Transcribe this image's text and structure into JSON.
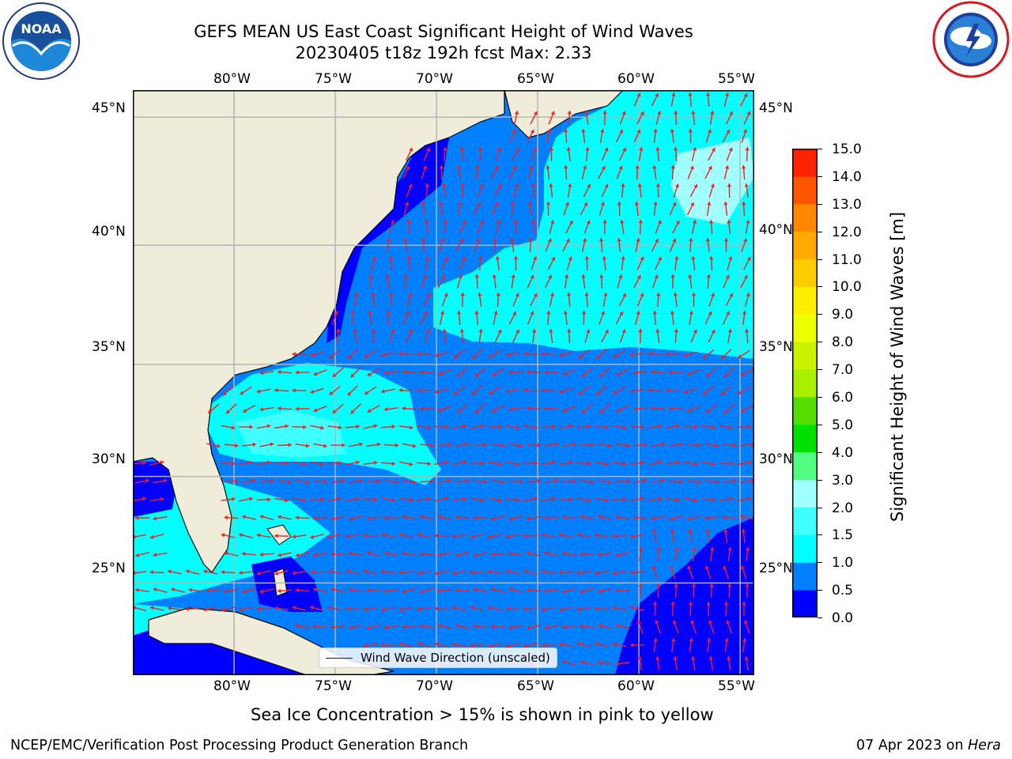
{
  "title": {
    "line1": "GEFS MEAN US East Coast Significant Height of Wind Waves",
    "line2": "20230405 t18z 192h fcst   Max: 2.33"
  },
  "logos": {
    "left": {
      "name": "noaa-logo",
      "text": "NOAA",
      "ring_text": "NATIONAL OCEANIC AND ATMOSPHERIC ADMINISTRATION · U.S. DEPARTMENT OF COMMERCE"
    },
    "right": {
      "name": "nws-logo",
      "ring_text": "NATIONAL WEATHER SERVICE"
    }
  },
  "map": {
    "lon_range": [
      -85,
      -54.3
    ],
    "lat_range": [
      20.5,
      46
    ],
    "lon_ticks": [
      "80°W",
      "75°W",
      "70°W",
      "65°W",
      "60°W",
      "55°W"
    ],
    "lat_ticks": [
      "45°N",
      "40°N",
      "35°N",
      "30°N",
      "25°N"
    ],
    "grid": true,
    "colors": {
      "land": "#efedd9",
      "coastline": "#000000",
      "gridline": "#b4b4b4",
      "arrow": "#ff1a1a"
    },
    "legend": {
      "label": "Wind Wave Direction (unscaled)",
      "placement": "lower-center"
    },
    "max_value": "Max: 2.33"
  },
  "colorbar": {
    "title": "Significant Height of Wind Waves [m]",
    "ticks": [
      "15.0",
      "14.0",
      "13.0",
      "12.0",
      "11.0",
      "10.0",
      "9.0",
      "8.0",
      "7.0",
      "6.0",
      "5.0",
      "4.0",
      "3.0",
      "2.0",
      "1.5",
      "1.0",
      "0.5",
      "0.0"
    ],
    "levels": [
      0,
      0.5,
      1.0,
      1.5,
      2.0,
      3.0,
      4.0,
      5.0,
      6.0,
      7.0,
      8.0,
      9.0,
      10.0,
      11.0,
      12.0,
      13.0,
      14.0,
      15.0
    ],
    "colors": [
      "#0000ff",
      "#0080ff",
      "#00ffff",
      "#40ffff",
      "#a0ffff",
      "#50ff80",
      "#00e000",
      "#55dd00",
      "#aaee00",
      "#ccf200",
      "#eeff00",
      "#ffee00",
      "#ffcc00",
      "#ffaa00",
      "#ff8800",
      "#ff5500",
      "#ff2200"
    ]
  },
  "caption": "Sea Ice Concentration > 15% is shown in pink to yellow",
  "footer": {
    "left": "NCEP/EMC/Verification Post Processing Product Generation Branch",
    "right_date": "07 Apr 2023 on ",
    "right_host": "Hera"
  }
}
